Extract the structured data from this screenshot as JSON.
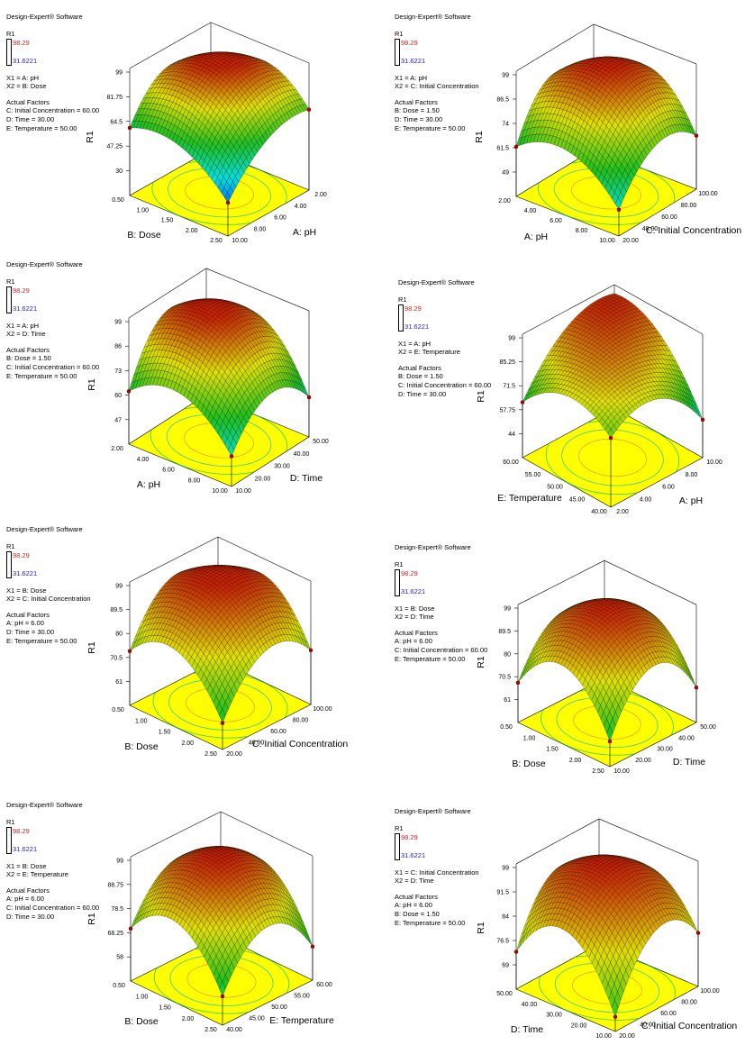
{
  "chart_data": [
    {
      "type": "surface3d",
      "software_label": "Design-Expert® Software",
      "legend_title": "R1",
      "legend_max": "98.29",
      "legend_min": "31.6221",
      "x1": "X1 = A: pH",
      "x2": "X2 = B: Dose",
      "actual_factors_title": "Actual Factors",
      "actual_factors": [
        "C: Initial Concentration = 60.00",
        "D: Time = 30.00",
        "E: Temperature = 50.00"
      ],
      "zlabel": "R1",
      "zticks": [
        "30",
        "47.25",
        "64.5",
        "81.75",
        "99"
      ],
      "zlim": [
        12.75,
        99
      ],
      "left_axis": {
        "label": "B: Dose",
        "ticks": [
          "0.50",
          "1.00",
          "1.50",
          "2.00",
          "2.50"
        ]
      },
      "right_axis": {
        "label": "A: pH",
        "ticks": [
          "10.00",
          "8.00",
          "6.00",
          "4.00",
          "2.00"
        ]
      },
      "surface_grid": [
        [
          60,
          88,
          62
        ],
        [
          62,
          97,
          90
        ],
        [
          36,
          65,
          69
        ]
      ],
      "colormap": [
        "#0040ff",
        "#00e0e0",
        "#20c020",
        "#e0e000",
        "#c82000"
      ]
    },
    {
      "type": "surface3d",
      "software_label": "Design-Expert® Software",
      "legend_title": "R1",
      "legend_max": "98.29",
      "legend_min": "31.6221",
      "x1": "X1 = A: pH",
      "x2": "X2 = C: Initial Concentration",
      "actual_factors_title": "Actual Factors",
      "actual_factors": [
        "B: Dose = 1.50",
        "D: Time = 30.00",
        "E: Temperature = 50.00"
      ],
      "zlabel": "R1",
      "zticks": [
        "49",
        "61.5",
        "74",
        "86.5",
        "99"
      ],
      "zlim": [
        36.5,
        99
      ],
      "left_axis": {
        "label": "A: pH",
        "ticks": [
          "2.00",
          "4.00",
          "6.00",
          "8.00",
          "10.00"
        ]
      },
      "right_axis": {
        "label": "C: Initial Concentration",
        "ticks": [
          "20.00",
          "40.00",
          "60.00",
          "80.00",
          "100.00"
        ]
      },
      "surface_grid": [
        [
          62,
          88,
          62
        ],
        [
          70,
          97,
          90
        ],
        [
          50,
          72,
          64
        ]
      ],
      "colormap": [
        "#0040ff",
        "#00e0e0",
        "#20c020",
        "#e0e000",
        "#c82000"
      ]
    },
    {
      "type": "surface3d",
      "software_label": "Design-Expert® Software",
      "legend_title": "R1",
      "legend_max": "98.29",
      "legend_min": "31.6221",
      "x1": "X1 = A: pH",
      "x2": "X2 = D: Time",
      "actual_factors_title": "Actual Factors",
      "actual_factors": [
        "B: Dose = 1.50",
        "C: Initial Concentration = 60.00",
        "E: Temperature = 50.00"
      ],
      "zlabel": "R1",
      "zticks": [
        "47",
        "60",
        "73",
        "86",
        "99"
      ],
      "zlim": [
        34,
        99
      ],
      "left_axis": {
        "label": "A: pH",
        "ticks": [
          "2.00",
          "4.00",
          "6.00",
          "8.00",
          "10.00"
        ]
      },
      "right_axis": {
        "label": "D: Time",
        "ticks": [
          "10.00",
          "20.00",
          "30.00",
          "40.00",
          "50.00"
        ]
      },
      "surface_grid": [
        [
          62,
          92,
          70
        ],
        [
          72,
          97,
          88
        ],
        [
          50,
          70,
          55
        ]
      ],
      "colormap": [
        "#0040ff",
        "#00e0e0",
        "#20c020",
        "#e0e000",
        "#c82000"
      ]
    },
    {
      "type": "surface3d",
      "software_label": "Design-Expert® Software",
      "legend_title": "R1",
      "legend_max": "98.29",
      "legend_min": "31.6221",
      "x1": "X1 = A: pH",
      "x2": "X2 = E: Temperature",
      "actual_factors_title": "Actual Factors",
      "actual_factors": [
        "B: Dose = 1.50",
        "C: Initial Concentration = 60.00",
        "D: Time = 30.00"
      ],
      "zlabel": "R1",
      "zticks": [
        "44",
        "57.75",
        "71.5",
        "85.25",
        "99"
      ],
      "zlim": [
        30.25,
        99
      ],
      "left_axis": {
        "label": "E: Temperature",
        "ticks": [
          "60.00",
          "55.00",
          "50.00",
          "45.00",
          "40.00"
        ]
      },
      "right_axis": {
        "label": "A: pH",
        "ticks": [
          "2.00",
          "4.00",
          "6.00",
          "8.00",
          "10.00"
        ]
      },
      "surface_grid": [
        [
          62,
          92,
          96
        ],
        [
          80,
          92,
          88
        ],
        [
          70,
          78,
          52
        ]
      ],
      "colormap": [
        "#0040ff",
        "#00e0e0",
        "#20c020",
        "#e0e000",
        "#c82000"
      ]
    },
    {
      "type": "surface3d",
      "software_label": "Design-Expert® Software",
      "legend_title": "R1",
      "legend_max": "98.29",
      "legend_min": "31.6221",
      "x1": "X1 = B: Dose",
      "x2": "X2 = C: Initial Concentration",
      "actual_factors_title": "Actual Factors",
      "actual_factors": [
        "A: pH = 6.00",
        "D: Time = 30.00",
        "E: Temperature = 50.00"
      ],
      "zlabel": "R1",
      "zticks": [
        "61",
        "70.5",
        "80",
        "89.5",
        "99"
      ],
      "zlim": [
        51.5,
        99
      ],
      "left_axis": {
        "label": "B: Dose",
        "ticks": [
          "0.50",
          "1.00",
          "1.50",
          "2.00",
          "2.50"
        ]
      },
      "right_axis": {
        "label": "C: Initial Concentration",
        "ticks": [
          "20.00",
          "40.00",
          "60.00",
          "80.00",
          "100.00"
        ]
      },
      "surface_grid": [
        [
          73,
          94,
          80
        ],
        [
          82,
          98,
          94
        ],
        [
          62,
          82,
          73
        ]
      ],
      "colormap": [
        "#0040ff",
        "#00e0e0",
        "#20c020",
        "#e0e000",
        "#c82000"
      ]
    },
    {
      "type": "surface3d",
      "software_label": "Design-Expert® Software",
      "legend_title": "R1",
      "legend_max": "98.29",
      "legend_min": "31.6221",
      "x1": "X1 = B: Dose",
      "x2": "X2 = D: Time",
      "actual_factors_title": "Actual Factors",
      "actual_factors": [
        "A: pH = 6.00",
        "C: Initial Concentration = 60.00",
        "E: Temperature = 50.00"
      ],
      "zlabel": "R1",
      "zticks": [
        "61",
        "70.5",
        "80",
        "89.5",
        "99"
      ],
      "zlim": [
        51.5,
        99
      ],
      "left_axis": {
        "label": "B: Dose",
        "ticks": [
          "0.50",
          "1.00",
          "1.50",
          "2.00",
          "2.50"
        ]
      },
      "right_axis": {
        "label": "D: Time",
        "ticks": [
          "10.00",
          "20.00",
          "30.00",
          "40.00",
          "50.00"
        ]
      },
      "surface_grid": [
        [
          68,
          88,
          72
        ],
        [
          84,
          98,
          88
        ],
        [
          62,
          84,
          66
        ]
      ],
      "colormap": [
        "#0040ff",
        "#00e0e0",
        "#20c020",
        "#e0e000",
        "#c82000"
      ]
    },
    {
      "type": "surface3d",
      "software_label": "Design-Expert® Software",
      "legend_title": "R1",
      "legend_max": "98.29",
      "legend_min": "31.6221",
      "x1": "X1 = B: Dose",
      "x2": "X2 = E: Temperature",
      "actual_factors_title": "Actual Factors",
      "actual_factors": [
        "A: pH = 6.00",
        "C: Initial Concentration = 60.00",
        "D: Time = 30.00"
      ],
      "zlabel": "R1",
      "zticks": [
        "58",
        "68.25",
        "78.5",
        "88.75",
        "99"
      ],
      "zlim": [
        47.75,
        99
      ],
      "left_axis": {
        "label": "B: Dose",
        "ticks": [
          "0.50",
          "1.00",
          "1.50",
          "2.00",
          "2.50"
        ]
      },
      "right_axis": {
        "label": "E: Temperature",
        "ticks": [
          "40.00",
          "45.00",
          "50.00",
          "55.00",
          "60.00"
        ]
      },
      "surface_grid": [
        [
          70,
          90,
          75
        ],
        [
          82,
          98,
          88
        ],
        [
          60,
          80,
          62
        ]
      ],
      "colormap": [
        "#0040ff",
        "#00e0e0",
        "#20c020",
        "#e0e000",
        "#c82000"
      ]
    },
    {
      "type": "surface3d",
      "software_label": "Design-Expert® Software",
      "legend_title": "R1",
      "legend_max": "98.29",
      "legend_min": "31.6221",
      "x1": "X1 = C: Initial Concentration",
      "x2": "X2 = D: Time",
      "actual_factors_title": "Actual Factors",
      "actual_factors": [
        "A: pH = 6.00",
        "B: Dose = 1.50",
        "E: Temperature = 50.00"
      ],
      "zlabel": "R1",
      "zticks": [
        "69",
        "76.5",
        "84",
        "91.5",
        "99"
      ],
      "zlim": [
        61.5,
        99
      ],
      "left_axis": {
        "label": "D: Time",
        "ticks": [
          "50.00",
          "40.00",
          "30.00",
          "20.00",
          "10.00"
        ]
      },
      "right_axis": {
        "label": "C: Initial Concentration",
        "ticks": [
          "20.00",
          "40.00",
          "60.00",
          "80.00",
          "100.00"
        ]
      },
      "surface_grid": [
        [
          73,
          92,
          78
        ],
        [
          86,
          98,
          92
        ],
        [
          66,
          86,
          78
        ]
      ],
      "colormap": [
        "#0040ff",
        "#00e0e0",
        "#20c020",
        "#e0e000",
        "#c82000"
      ]
    }
  ]
}
